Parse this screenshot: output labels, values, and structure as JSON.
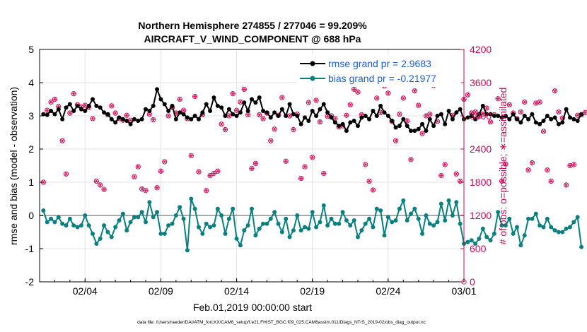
{
  "chart_data": {
    "type": "line",
    "title": "Northern Hemisphere 274855 / 277046 = 99.209%",
    "subtitle": "AIRCRAFT_V_WIND_COMPONENT @ 688 hPa",
    "xlabel": "Feb.01,2019 00:00:00 start",
    "ylabel_left": "rmse and bias (model - observation)",
    "ylabel_right": "# of obs: o=possible; ∗=assimilated",
    "ylim_left": [
      -2,
      5
    ],
    "ylim_right": [
      0,
      4200
    ],
    "xlim_days": [
      0,
      28
    ],
    "x_tick_labels": [
      "02/04",
      "02/09",
      "02/14",
      "02/19",
      "02/24",
      "03/01"
    ],
    "x_tick_days": [
      3,
      8,
      13,
      18,
      23,
      28
    ],
    "y_left_ticks": [
      "-2",
      "-1",
      "0",
      "1",
      "2",
      "3",
      "4",
      "5"
    ],
    "y_right_ticks": [
      "0",
      "600",
      "1200",
      "1800",
      "2400",
      "3000",
      "3600",
      "4200"
    ],
    "legend": [
      "rmse grand pr = 2.9683",
      "bias grand pr = -0.21977"
    ],
    "footer": "data file: /Users/raeder/DAI/ATM_forcXX/CAM6_setup/f.e21.FHIST_BGC.f09_025.CAM6assim.011/Diags_NTrS_2019-02/obs_diag_output.nc",
    "colors": {
      "rmse": "#000000",
      "bias": "#0a7f7f",
      "obs": "#cc0a55",
      "zero": "#aaaaaa",
      "legend_text": "#1f5fd6"
    },
    "series": [
      {
        "name": "rmse",
        "x_step_days": 0.25,
        "values": [
          3.05,
          3.03,
          3.15,
          3.05,
          3.2,
          2.9,
          3.25,
          3.35,
          3.15,
          3.3,
          3.2,
          3.15,
          3.3,
          3.5,
          3.3,
          3.25,
          3.1,
          3.05,
          2.9,
          2.8,
          2.95,
          2.9,
          2.85,
          2.75,
          2.9,
          2.85,
          2.9,
          3.2,
          3.15,
          3.3,
          3.8,
          3.5,
          3.35,
          3.15,
          3.3,
          2.9,
          3.1,
          3.05,
          2.95,
          2.9,
          3.0,
          2.9,
          3.1,
          3.35,
          3.15,
          3.55,
          3.3,
          3.25,
          3.0,
          3.2,
          3.05,
          3.0,
          3.1,
          3.4,
          3.15,
          3.5,
          3.4,
          3.55,
          3.15,
          3.1,
          2.95,
          3.1,
          3.0,
          3.2,
          3.0,
          3.35,
          3.05,
          3.0,
          2.75,
          2.95,
          2.85,
          3.15,
          3.0,
          3.2,
          3.35,
          3.1,
          2.95,
          2.8,
          2.7,
          2.75,
          2.55,
          2.8,
          2.85,
          2.7,
          2.95,
          3.0,
          2.9,
          3.15,
          3.0,
          3.3,
          3.1,
          3.0,
          2.85,
          2.65,
          2.7,
          2.9,
          2.7,
          2.55,
          2.55,
          2.6,
          2.75,
          2.55,
          2.9,
          2.7,
          3.0,
          3.05,
          2.75,
          3.15,
          2.9,
          3.1,
          3.2,
          2.9,
          2.95,
          3.0,
          2.9,
          3.05,
          3.3,
          3.05,
          3.05,
          3.0,
          3.0,
          2.95,
          3.0,
          2.9,
          3.05,
          2.9,
          2.8,
          3.0,
          2.9,
          3.05,
          2.8,
          2.75,
          2.85,
          3.0,
          2.9,
          2.95,
          2.75,
          2.8,
          3.2,
          2.95,
          2.9,
          2.85,
          3.05
        ]
      },
      {
        "name": "bias",
        "x_step_days": 0.25,
        "values": [
          0.15,
          -0.2,
          -0.1,
          -0.2,
          -0.05,
          -0.25,
          -0.3,
          -0.1,
          -0.3,
          -0.35,
          -0.3,
          0.0,
          -0.3,
          -0.55,
          -0.85,
          -0.7,
          -0.3,
          -0.5,
          -0.65,
          -0.35,
          -0.15,
          0.05,
          -0.45,
          -0.2,
          -0.05,
          -0.05,
          0.1,
          -0.2,
          0.4,
          -0.05,
          0.1,
          -0.55,
          -0.55,
          -0.3,
          -0.25,
          0.0,
          0.25,
          -0.1,
          -1.05,
          0.5,
          0.2,
          -0.35,
          -0.55,
          -0.25,
          -0.35,
          -0.3,
          0.2,
          0.0,
          -0.55,
          -0.1,
          0.2,
          -0.7,
          -0.9,
          -0.45,
          -0.3,
          0.2,
          -0.6,
          -0.4,
          -0.25,
          -0.25,
          -0.1,
          0.1,
          -0.25,
          -0.5,
          -0.1,
          -0.65,
          -0.45,
          0.0,
          -0.45,
          -0.35,
          -0.4,
          0.1,
          -0.35,
          -0.2,
          0.3,
          -0.3,
          -0.1,
          -0.25,
          -0.25,
          0.1,
          -0.15,
          -0.3,
          -0.15,
          -0.65,
          -0.45,
          -0.25,
          -0.1,
          -0.35,
          0.2,
          0.15,
          -0.6,
          -0.05,
          -0.2,
          -0.15,
          0.2,
          0.45,
          -0.15,
          0.05,
          0.2,
          -0.1,
          -0.55,
          0.0,
          -0.25,
          -0.3,
          -0.2,
          0.35,
          -0.15,
          0.45,
          0.0,
          0.4,
          -0.25,
          -0.85,
          -0.8,
          -0.75,
          -0.85,
          -0.7,
          -0.4,
          -0.65,
          -0.75,
          -0.55,
          0.1,
          -0.3,
          -0.3,
          -0.1,
          -0.55,
          -0.35,
          -0.9,
          -0.6,
          -0.1,
          -0.1,
          0.05,
          -0.3,
          -0.35,
          -0.1,
          -0.35,
          -0.45,
          -0.5,
          -0.5,
          -0.4,
          -0.35,
          -0.2,
          -0.05,
          -0.95
        ]
      },
      {
        "name": "obs_possible",
        "x_step_days": 0.25,
        "values": [
          1800,
          3100,
          3250,
          3300,
          3170,
          2550,
          1950,
          3050,
          3400,
          3200,
          3160,
          3190,
          3150,
          2950,
          1820,
          1750,
          1670,
          3020,
          3180,
          3050,
          2950,
          2920,
          3010,
          2920,
          1900,
          2080,
          1680,
          1650,
          3030,
          2930,
          1700,
          2000,
          2170,
          3000,
          3150,
          3050,
          3300,
          3100,
          2950,
          2280,
          3350,
          1990,
          3020,
          1650,
          1920,
          1960,
          2000,
          2850,
          2750,
          3000,
          3400,
          3100,
          3250,
          3480,
          3020,
          2050,
          2140,
          3020,
          2950,
          3050,
          2550,
          2760,
          3010,
          3330,
          2180,
          3000,
          2750,
          3030,
          1870,
          2080,
          3240,
          2250,
          3280,
          2890,
          1960,
          2990,
          3000,
          2950,
          2800,
          2820,
          3010,
          3200,
          3480,
          3430,
          3020,
          2120,
          1820,
          1660,
          3320,
          3060,
          3540,
          3410,
          2900,
          2550,
          3030,
          3320,
          2910,
          2210,
          3450,
          3190,
          2680,
          3000,
          3030,
          3550,
          2900,
          1920,
          2120,
          3660,
          3010,
          1950,
          1820,
          3300,
          3380,
          3050,
          3070,
          2990,
          3030,
          3140,
          2890,
          3020,
          3310,
          1820,
          2130,
          3200,
          3050,
          2950,
          3070,
          3250,
          2020,
          2150,
          3230,
          3250,
          2720,
          2020,
          1820,
          3450,
          3070,
          2960,
          1750,
          2100,
          2120,
          3010,
          3020,
          3060
        ]
      },
      {
        "name": "obs_assimilated",
        "x_step_days": 0.25,
        "values": [
          1800,
          3100,
          3250,
          3300,
          3170,
          2550,
          1950,
          3050,
          3400,
          3200,
          3160,
          3190,
          3150,
          2950,
          1820,
          1750,
          1670,
          3020,
          3180,
          3050,
          2950,
          2920,
          3010,
          2920,
          1900,
          2080,
          1680,
          1650,
          3030,
          2930,
          1700,
          2000,
          2170,
          3000,
          3150,
          3050,
          3300,
          3100,
          2950,
          2280,
          3350,
          1990,
          3020,
          1650,
          1920,
          1960,
          2000,
          2850,
          2750,
          3000,
          3400,
          3100,
          3250,
          3480,
          3020,
          2050,
          2140,
          3020,
          2950,
          3050,
          2550,
          2760,
          3010,
          3330,
          2180,
          3000,
          2750,
          3030,
          1870,
          2080,
          3240,
          2250,
          3280,
          2890,
          1960,
          2990,
          3000,
          2950,
          2800,
          2820,
          3010,
          3200,
          3480,
          3430,
          3020,
          2120,
          1820,
          1660,
          3320,
          3060,
          3540,
          3410,
          2900,
          2550,
          3030,
          3320,
          2910,
          2210,
          3450,
          3190,
          2680,
          3000,
          3030,
          3550,
          2900,
          1920,
          2120,
          3660,
          3010,
          1950,
          1820,
          3300,
          3380,
          3050,
          3070,
          2990,
          3030,
          3140,
          2890,
          3020,
          3310,
          1820,
          2130,
          3200,
          3050,
          2950,
          3070,
          3250,
          2020,
          2150,
          3230,
          3250,
          2720,
          2020,
          1820,
          3450,
          3070,
          2960,
          1750,
          2100,
          2120,
          3010,
          3020,
          3060
        ]
      }
    ]
  }
}
